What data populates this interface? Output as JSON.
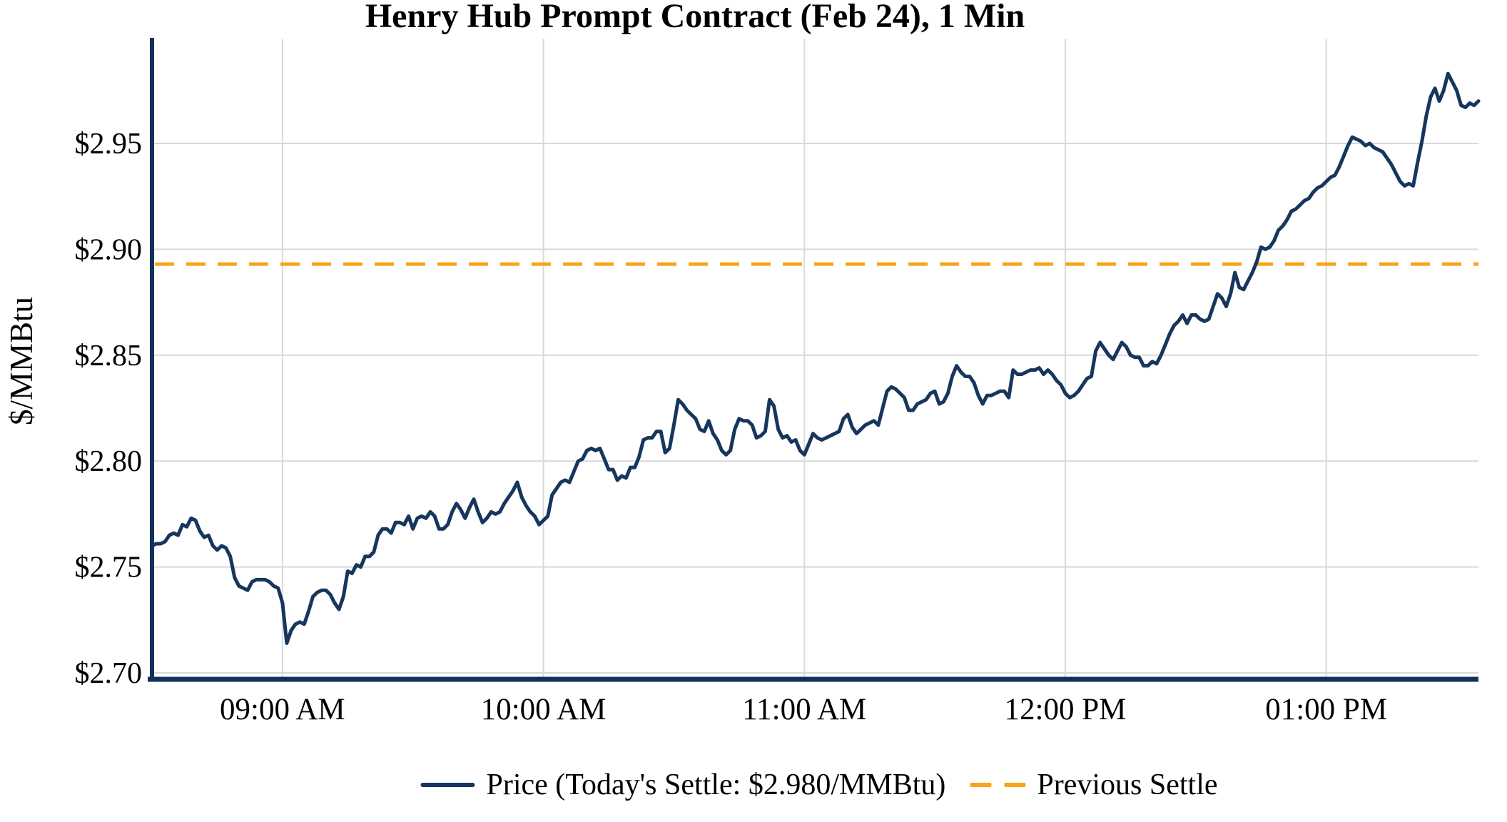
{
  "chart": {
    "title": "Henry Hub Prompt Contract (Feb 24), 1 Min",
    "ylabel": "$/MMBtu",
    "legend": {
      "price_label": "Price (Today's Settle: $2.980/MMBtu)",
      "settle_label": "Previous Settle"
    },
    "colors": {
      "price": "#17365D",
      "previous_settle": "#F9A41B",
      "grid": "#D9D9D9",
      "axis": "#103158",
      "text": "#000000"
    }
  },
  "chart_data": {
    "type": "line",
    "title": "Henry Hub Prompt Contract (Feb 24), 1 Min",
    "xlabel": "",
    "ylabel": "$/MMBtu",
    "grid": true,
    "legend_position": "bottom",
    "today_settle": 2.98,
    "previous_settle": 2.893,
    "ylim": [
      2.698,
      2.997
    ],
    "x_start": "08:30",
    "x_end": "13:35",
    "y_ticks": [
      {
        "label": "$2.70",
        "value": 2.7
      },
      {
        "label": "$2.75",
        "value": 2.75
      },
      {
        "label": "$2.80",
        "value": 2.8
      },
      {
        "label": "$2.85",
        "value": 2.85
      },
      {
        "label": "$2.90",
        "value": 2.9
      },
      {
        "label": "$2.95",
        "value": 2.95
      }
    ],
    "x_ticks": [
      {
        "label": "09:00 AM",
        "time": "09:00"
      },
      {
        "label": "10:00 AM",
        "time": "10:00"
      },
      {
        "label": "11:00 AM",
        "time": "11:00"
      },
      {
        "label": "12:00 PM",
        "time": "12:00"
      },
      {
        "label": "01:00 PM",
        "time": "13:00"
      }
    ],
    "series": [
      {
        "name": "Price",
        "type": "line",
        "color": "#17365D",
        "start_time": "08:30",
        "interval_minutes": 1,
        "values": [
          2.76,
          2.761,
          2.761,
          2.762,
          2.765,
          2.766,
          2.765,
          2.77,
          2.769,
          2.773,
          2.772,
          2.767,
          2.764,
          2.765,
          2.76,
          2.758,
          2.76,
          2.759,
          2.755,
          2.745,
          2.741,
          2.74,
          2.739,
          2.743,
          2.744,
          2.744,
          2.744,
          2.743,
          2.741,
          2.74,
          2.733,
          2.714,
          2.72,
          2.723,
          2.724,
          2.723,
          2.729,
          2.736,
          2.738,
          2.739,
          2.739,
          2.737,
          2.733,
          2.73,
          2.736,
          2.748,
          2.747,
          2.751,
          2.75,
          2.755,
          2.755,
          2.757,
          2.765,
          2.768,
          2.768,
          2.766,
          2.771,
          2.771,
          2.77,
          2.774,
          2.768,
          2.773,
          2.774,
          2.773,
          2.776,
          2.774,
          2.768,
          2.768,
          2.77,
          2.776,
          2.78,
          2.777,
          2.773,
          2.778,
          2.782,
          2.776,
          2.771,
          2.773,
          2.776,
          2.775,
          2.776,
          2.78,
          2.783,
          2.786,
          2.79,
          2.783,
          2.779,
          2.776,
          2.774,
          2.77,
          2.772,
          2.774,
          2.784,
          2.787,
          2.79,
          2.791,
          2.79,
          2.795,
          2.8,
          2.801,
          2.805,
          2.806,
          2.805,
          2.806,
          2.801,
          2.796,
          2.796,
          2.791,
          2.793,
          2.792,
          2.797,
          2.797,
          2.802,
          2.81,
          2.811,
          2.811,
          2.814,
          2.814,
          2.804,
          2.806,
          2.817,
          2.829,
          2.827,
          2.824,
          2.822,
          2.82,
          2.815,
          2.814,
          2.819,
          2.813,
          2.81,
          2.805,
          2.803,
          2.805,
          2.815,
          2.82,
          2.819,
          2.819,
          2.817,
          2.811,
          2.812,
          2.814,
          2.829,
          2.826,
          2.815,
          2.811,
          2.812,
          2.809,
          2.81,
          2.805,
          2.803,
          2.808,
          2.813,
          2.811,
          2.81,
          2.811,
          2.812,
          2.813,
          2.814,
          2.82,
          2.822,
          2.816,
          2.813,
          2.815,
          2.817,
          2.818,
          2.819,
          2.817,
          2.825,
          2.833,
          2.835,
          2.834,
          2.832,
          2.83,
          2.824,
          2.824,
          2.827,
          2.828,
          2.829,
          2.832,
          2.833,
          2.827,
          2.828,
          2.832,
          2.84,
          2.845,
          2.842,
          2.84,
          2.84,
          2.837,
          2.831,
          2.827,
          2.831,
          2.831,
          2.832,
          2.833,
          2.833,
          2.83,
          2.843,
          2.841,
          2.841,
          2.842,
          2.843,
          2.843,
          2.844,
          2.841,
          2.843,
          2.841,
          2.838,
          2.836,
          2.832,
          2.83,
          2.831,
          2.833,
          2.836,
          2.839,
          2.84,
          2.852,
          2.856,
          2.853,
          2.85,
          2.848,
          2.852,
          2.856,
          2.854,
          2.85,
          2.849,
          2.849,
          2.845,
          2.845,
          2.847,
          2.846,
          2.85,
          2.855,
          2.86,
          2.864,
          2.866,
          2.869,
          2.865,
          2.869,
          2.869,
          2.867,
          2.866,
          2.867,
          2.873,
          2.879,
          2.877,
          2.873,
          2.879,
          2.889,
          2.882,
          2.881,
          2.885,
          2.889,
          2.894,
          2.901,
          2.9,
          2.901,
          2.904,
          2.909,
          2.911,
          2.914,
          2.918,
          2.919,
          2.921,
          2.923,
          2.924,
          2.927,
          2.929,
          2.93,
          2.932,
          2.934,
          2.935,
          2.939,
          2.944,
          2.949,
          2.953,
          2.952,
          2.951,
          2.949,
          2.95,
          2.948,
          2.947,
          2.946,
          2.943,
          2.94,
          2.936,
          2.932,
          2.93,
          2.931,
          2.93,
          2.941,
          2.951,
          2.963,
          2.972,
          2.976,
          2.97,
          2.975,
          2.983,
          2.979,
          2.975,
          2.968,
          2.967,
          2.969,
          2.968,
          2.97
        ]
      },
      {
        "name": "Previous Settle",
        "type": "hline",
        "color": "#F9A41B",
        "dashed": true,
        "value": 2.893
      }
    ]
  }
}
